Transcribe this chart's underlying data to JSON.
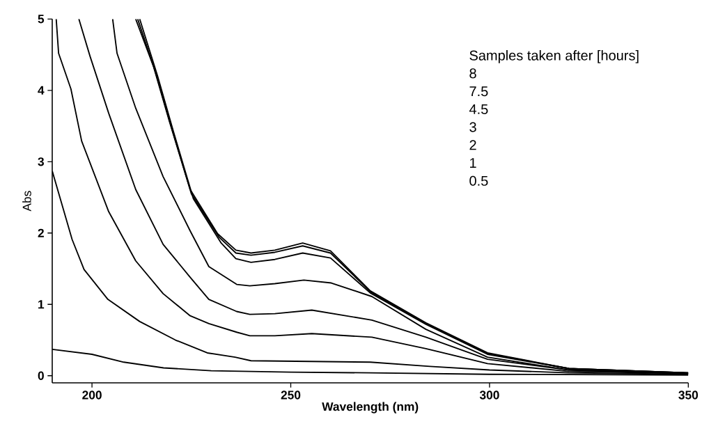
{
  "chart_data": {
    "type": "line",
    "xlabel": "Wavelength (nm)",
    "ylabel": "Abs",
    "annotations": [
      "Samples taken after [hours]",
      "8",
      "7.5",
      "4.5",
      "3",
      "2",
      "1",
      "0.5"
    ],
    "xlim": [
      190,
      350
    ],
    "ylim": [
      -0.1,
      5
    ],
    "xticks": [
      200,
      250,
      300,
      350
    ],
    "yticks": [
      0,
      1,
      2,
      3,
      4,
      5
    ],
    "marker": "none",
    "line_style": "solid",
    "grid": false,
    "series": [
      {
        "color": "#000000",
        "x": [
          211,
          215.5,
          219.5,
          224.7,
          231.6,
          236.2,
          240,
          246,
          253,
          260,
          270,
          284,
          299.5,
          320,
          350
        ],
        "values": [
          5,
          4.33,
          3.56,
          2.61,
          1.99,
          1.76,
          1.72,
          1.76,
          1.86,
          1.75,
          1.19,
          0.74,
          0.32,
          0.1,
          0.04
        ]
      },
      {
        "color": "#000000",
        "x": [
          211.5,
          216,
          220,
          225,
          232,
          236.2,
          240,
          246,
          253,
          260,
          270,
          284,
          299.5,
          320,
          350
        ],
        "values": [
          5,
          4.25,
          3.48,
          2.55,
          1.94,
          1.72,
          1.69,
          1.73,
          1.82,
          1.72,
          1.18,
          0.73,
          0.31,
          0.1,
          0.04
        ]
      },
      {
        "color": "#000000",
        "x": [
          212,
          216.5,
          220.5,
          225.5,
          232.5,
          236.2,
          240,
          246,
          253,
          260,
          270,
          284,
          299.5,
          320,
          350
        ],
        "values": [
          5,
          4.2,
          3.42,
          2.48,
          1.86,
          1.64,
          1.59,
          1.63,
          1.72,
          1.65,
          1.16,
          0.72,
          0.3,
          0.1,
          0.04
        ]
      },
      {
        "color": "#000000",
        "x": [
          205.2,
          206.3,
          211,
          217.9,
          224.7,
          229.4,
          236.4,
          239.7,
          246,
          253.3,
          260.2,
          270.4,
          284,
          299.5,
          320,
          350
        ],
        "values": [
          5,
          4.52,
          3.75,
          2.79,
          2.03,
          1.53,
          1.28,
          1.26,
          1.29,
          1.34,
          1.3,
          1.11,
          0.65,
          0.26,
          0.08,
          0.03
        ]
      },
      {
        "color": "#000000",
        "x": [
          196.7,
          199.5,
          204.2,
          211,
          217.9,
          224.7,
          229.4,
          236.4,
          239.7,
          246,
          255.3,
          270.4,
          284,
          299.5,
          320,
          350
        ],
        "values": [
          5,
          4.48,
          3.68,
          2.61,
          1.84,
          1.38,
          1.07,
          0.9,
          0.86,
          0.87,
          0.92,
          0.78,
          0.54,
          0.23,
          0.08,
          0.03
        ]
      },
      {
        "color": "#000000",
        "x": [
          191,
          191.6,
          194.7,
          197.4,
          204.2,
          211,
          217.9,
          224.7,
          229.4,
          236.4,
          239.7,
          246,
          255.3,
          270.4,
          284,
          299.5,
          320,
          350
        ],
        "values": [
          5,
          4.52,
          4.02,
          3.29,
          2.3,
          1.61,
          1.15,
          0.84,
          0.73,
          0.61,
          0.56,
          0.56,
          0.59,
          0.54,
          0.38,
          0.17,
          0.06,
          0.03
        ]
      },
      {
        "color": "#000000",
        "x": [
          190,
          195,
          198,
          204,
          212,
          221,
          229,
          236,
          240,
          255,
          270,
          285,
          300,
          320,
          350
        ],
        "values": [
          2.87,
          1.91,
          1.49,
          1.07,
          0.76,
          0.5,
          0.32,
          0.26,
          0.21,
          0.2,
          0.19,
          0.13,
          0.08,
          0.04,
          0.02
        ]
      },
      {
        "color": "#000000",
        "x": [
          190,
          200,
          208,
          218,
          230,
          250,
          270,
          300,
          350
        ],
        "values": [
          0.37,
          0.3,
          0.19,
          0.11,
          0.07,
          0.05,
          0.04,
          0.02,
          0.01
        ]
      }
    ]
  }
}
